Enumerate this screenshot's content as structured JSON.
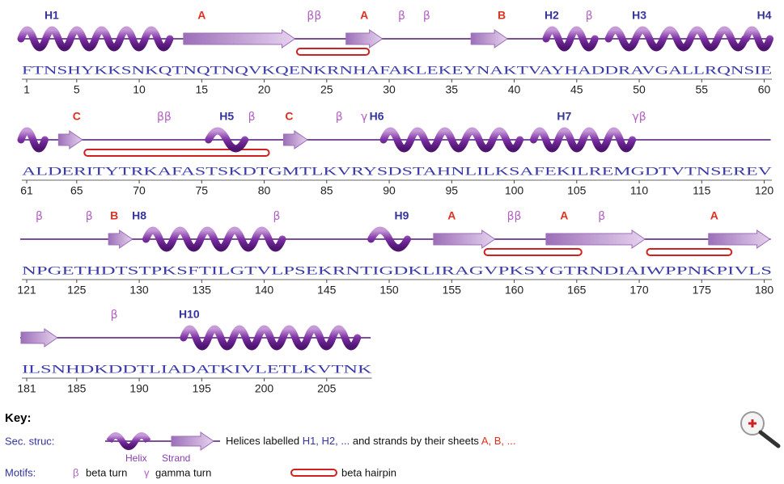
{
  "rows": [
    {
      "sequence": "FTNSHYKKSNKQTNQTNQVKQENKRNHAFAKLEKEYNAKTVAYHADDRAVGALLRQNSIE",
      "ticks": [
        1,
        5,
        10,
        15,
        20,
        25,
        30,
        35,
        40,
        45,
        50,
        55,
        60
      ],
      "labels": [
        "H1",
        "A",
        "ββ",
        "A",
        "β",
        "β",
        "B",
        "H2",
        "β",
        "H3",
        "H4"
      ]
    },
    {
      "sequence": "ALDERITYTRKAFASTSKDTGMTLKVRYSDSTAHNLILKSAFEKILREMGDTVTNSEREV",
      "ticks": [
        61,
        65,
        70,
        75,
        80,
        85,
        90,
        95,
        100,
        105,
        110,
        115,
        120
      ],
      "labels": [
        "C",
        "ββ",
        "H5",
        "β",
        "C",
        "β",
        "γ",
        "H6",
        "H7",
        "γβ"
      ]
    },
    {
      "sequence": "NPGETHDTSTPKSFTILGTVLPSEKRNTIGDKLIRAGVPKSYGTRNDIAIWPPNKPIVLS",
      "ticks": [
        121,
        125,
        130,
        135,
        140,
        145,
        150,
        155,
        160,
        165,
        170,
        175,
        180
      ],
      "labels": [
        "β",
        "β",
        "B",
        "H8",
        "β",
        "H9",
        "A",
        "ββ",
        "A",
        "β",
        "A"
      ]
    },
    {
      "sequence": "ILSNHDKDDTLIADATKIVLETLKVTNK",
      "ticks": [
        181,
        185,
        190,
        195,
        200,
        205
      ],
      "labels": [
        "β",
        "H10"
      ]
    }
  ],
  "key": {
    "title": "Key:",
    "sec_struc": "Sec. struc:",
    "helix": "Helix",
    "strand": "Strand",
    "text1": "Helices labelled",
    "helix_names": "H1, H2, ...",
    "text2": "and strands by their sheets",
    "sheet_names": "A, B, ...",
    "motifs": "Motifs:",
    "beta_symbol": "β",
    "beta_turn": "beta turn",
    "gamma_symbol": "γ",
    "gamma_turn": "gamma turn",
    "hairpin": "beta hairpin"
  }
}
